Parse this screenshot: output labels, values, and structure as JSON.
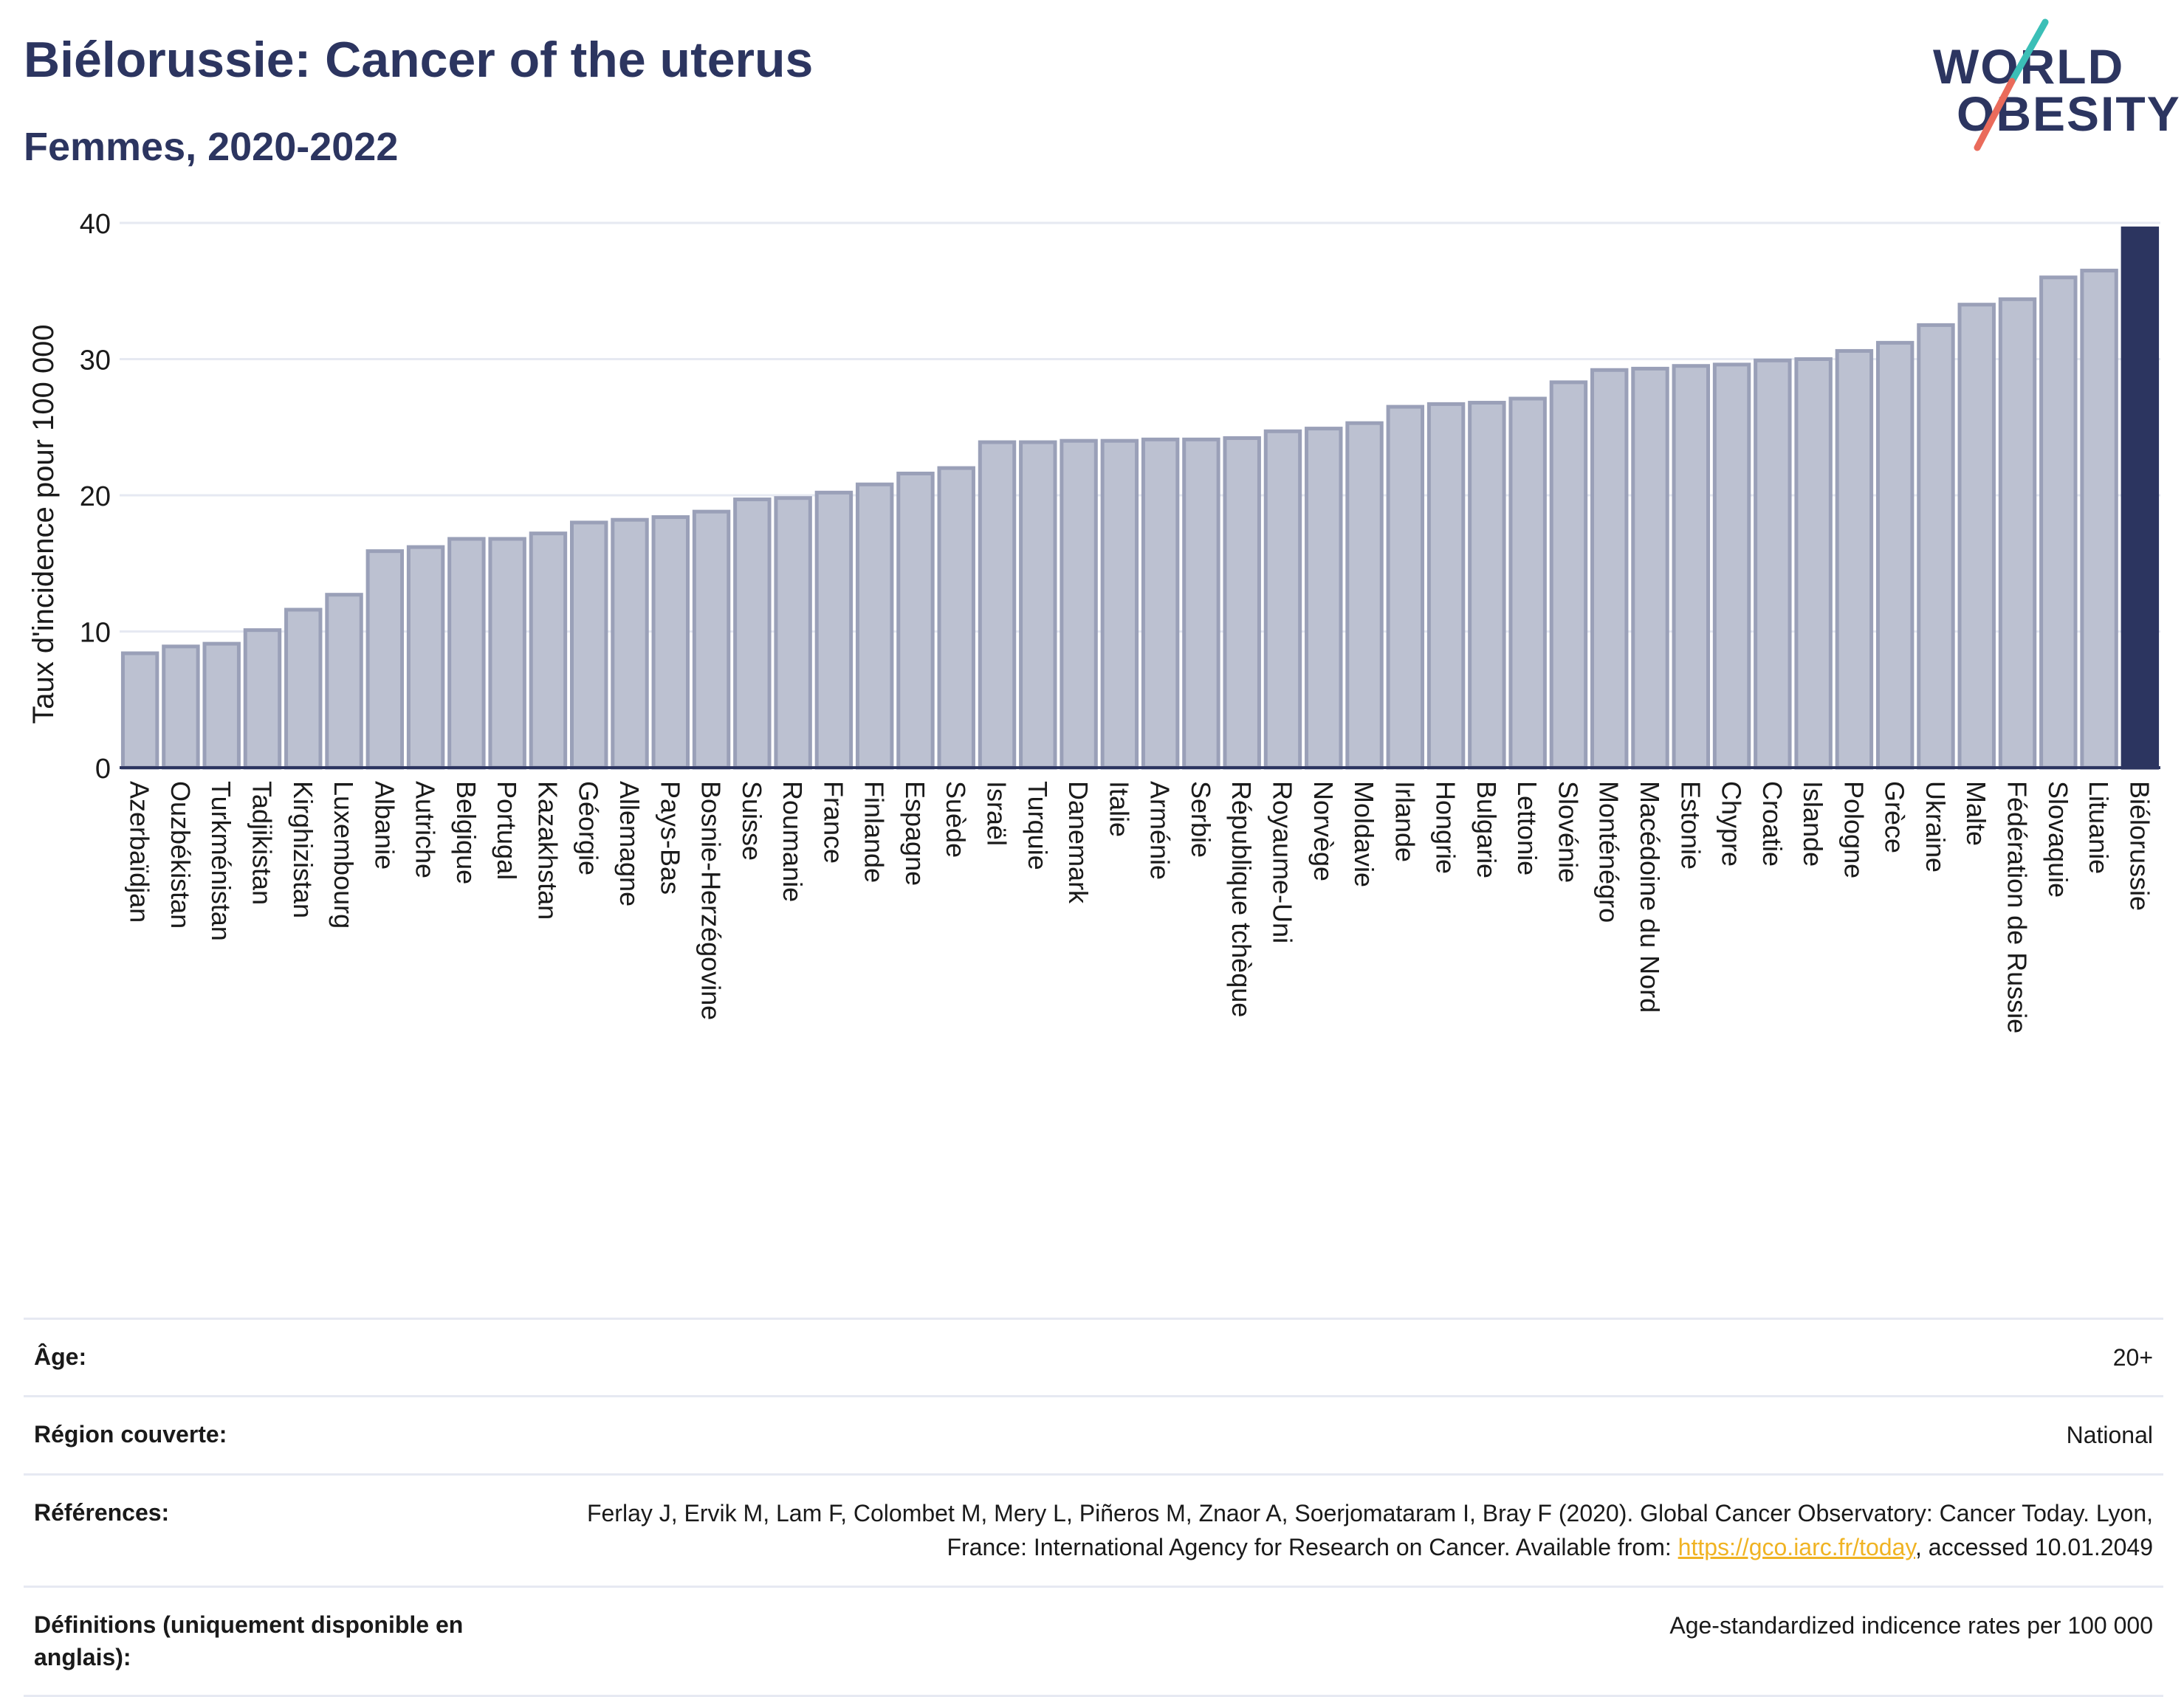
{
  "title": "Biélorussie: Cancer of the uterus",
  "subtitle": "Femmes, 2020-2022",
  "logo": {
    "line1": "WORLD",
    "line2": "OBESITY"
  },
  "colors": {
    "bar": "#bcc1d1",
    "bar_border": "#9aa0b8",
    "highlight": "#2c3560",
    "grid": "#e6e9f2",
    "link": "#f0b323"
  },
  "chart_data": {
    "type": "bar",
    "ylabel": "Taux d'incidence pour 100 000",
    "ylim": [
      0,
      40
    ],
    "yticks": [
      "0",
      "10",
      "20",
      "30",
      "40"
    ],
    "highlight": "Biélorussie",
    "categories": [
      "Azerbaïdjan",
      "Ouzbékistan",
      "Turkménistan",
      "Tadjikistan",
      "Kirghizistan",
      "Luxembourg",
      "Albanie",
      "Autriche",
      "Belgique",
      "Portugal",
      "Kazakhstan",
      "Géorgie",
      "Allemagne",
      "Pays-Bas",
      "Bosnie-Herzégovine",
      "Suisse",
      "Roumanie",
      "France",
      "Finlande",
      "Espagne",
      "Suède",
      "Israël",
      "Turquie",
      "Danemark",
      "Italie",
      "Arménie",
      "Serbie",
      "République tchèque",
      "Royaume-Uni",
      "Norvège",
      "Moldavie",
      "Irlande",
      "Hongrie",
      "Bulgarie",
      "Lettonie",
      "Slovénie",
      "Monténégro",
      "Macédoine du Nord",
      "Estonie",
      "Chypre",
      "Croatie",
      "Islande",
      "Pologne",
      "Grèce",
      "Ukraine",
      "Malte",
      "Fédération de Russie",
      "Slovaquie",
      "Lituanie",
      "Biélorussie"
    ],
    "values": [
      8.4,
      8.9,
      9.1,
      10.1,
      11.6,
      12.7,
      15.9,
      16.2,
      16.8,
      16.8,
      17.2,
      18.0,
      18.2,
      18.4,
      18.8,
      19.7,
      19.8,
      20.2,
      20.8,
      21.6,
      22.0,
      23.9,
      23.9,
      24.0,
      24.0,
      24.1,
      24.1,
      24.2,
      24.7,
      24.9,
      25.3,
      26.5,
      26.7,
      26.8,
      27.1,
      28.3,
      29.2,
      29.3,
      29.5,
      29.6,
      29.9,
      30.0,
      30.6,
      31.2,
      32.5,
      34.0,
      34.4,
      36.0,
      36.5,
      39.6
    ]
  },
  "meta": {
    "age_label": "Âge:",
    "age_value": "20+",
    "region_label": "Région couverte:",
    "region_value": "National",
    "refs_label": "Références:",
    "refs_text_before": "Ferlay J, Ervik M, Lam F, Colombet M, Mery L, Piñeros M, Znaor A, Soerjomataram I, Bray F (2020). Global Cancer Observatory: Cancer Today. Lyon, France: International Agency for Research on Cancer. Available from: ",
    "refs_link": "https://gco.iarc.fr/today",
    "refs_text_after": ", accessed 10.01.2049",
    "definitions_label": "Définitions (uniquement disponible en anglais):",
    "definitions_value": "Age-standardized indicence rates per 100 000"
  }
}
